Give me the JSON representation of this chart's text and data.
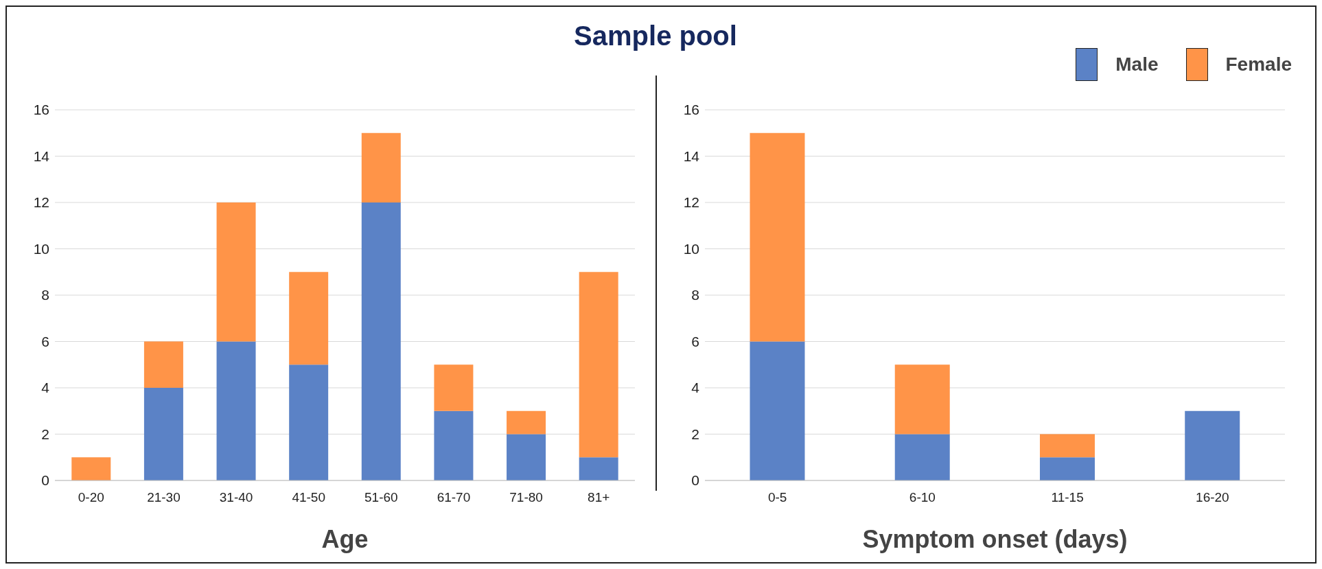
{
  "chart_data": [
    {
      "type": "bar",
      "title": "Sample pool",
      "xlabel": "Age",
      "categories": [
        "0-20",
        "21-30",
        "31-40",
        "41-50",
        "51-60",
        "61-70",
        "71-80",
        "81+"
      ],
      "stacked": true,
      "series": [
        {
          "color": "#5b82c6",
          "values": [
            0,
            4,
            6,
            5,
            12,
            3,
            2,
            1
          ]
        },
        {
          "color": "#ff9448",
          "values": [
            1,
            2,
            6,
            4,
            3,
            2,
            1,
            8
          ]
        }
      ],
      "ylim": [
        0,
        16
      ],
      "yticks": [
        0,
        2,
        4,
        6,
        8,
        10,
        12,
        14,
        16
      ],
      "grid": "y"
    },
    {
      "type": "bar",
      "xlabel": "Symptom onset (days)",
      "categories": [
        "0-5",
        "6-10",
        "11-15",
        "16-20"
      ],
      "stacked": true,
      "series": [
        {
          "name": "Male",
          "color": "#5b82c6",
          "values": [
            6,
            2,
            1,
            3
          ]
        },
        {
          "name": "Female",
          "color": "#ff9448",
          "values": [
            9,
            3,
            1,
            0
          ]
        }
      ],
      "ylim": [
        0,
        16
      ],
      "yticks": [
        0,
        2,
        4,
        6,
        8,
        10,
        12,
        14,
        16
      ],
      "grid": "y",
      "legend": "top right"
    }
  ]
}
